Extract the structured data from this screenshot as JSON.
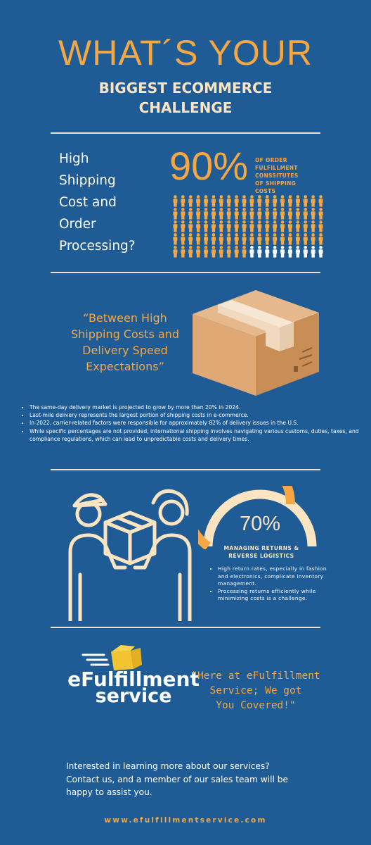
{
  "header": {
    "title_line1": "WHAT´S YOUR",
    "title_line2": "BIGGEST ECOMMERCE",
    "title_line3": "CHALLENGE"
  },
  "shipping": {
    "question_lines": [
      "High",
      "Shipping",
      "Cost and",
      "Order",
      "Processing?"
    ],
    "percent": "90%",
    "percent_label_lines": [
      "OF ORDER",
      "FULFILLMENT",
      "CONSSITUTES",
      "OF SHIPPING",
      "COSTS"
    ],
    "people_total": 100,
    "people_highlighted": 90,
    "colors": {
      "highlight": "#f4a742",
      "rest": "#ffffff"
    }
  },
  "delivery": {
    "quote_lines": [
      "“Between High",
      "Shipping Costs and",
      "Delivery Speed",
      "Expectations”"
    ],
    "box_icon": "cardboard-box-icon",
    "bullets": [
      "The same-day delivery market is projected to grow by more than 20% in 2024.",
      "Last-mile delivery represents the largest portion of shipping costs in e-commerce.",
      "In 2022, carrier-related factors were responsible for approximately 82% of delivery issues in the U.S.",
      "While specific percentages are not provided, international shipping involves navigating various customs, duties, taxes, and compliance regulations, which can lead to unpredictable costs and delivery times."
    ]
  },
  "returns": {
    "illustration_icon": "package-handover-icon",
    "percent": "70%",
    "gauge_fraction": 0.7,
    "heading_lines": [
      "MANAGING RETURNS &",
      "REVERSE LOGISTICS"
    ],
    "bullets": [
      "High return rates, especially in fashion and electronics, complicate inventory management.",
      "Processing returns efficiently while minimizing costs is a challenge."
    ]
  },
  "brand": {
    "logo_icon": "flying-box-icon",
    "logo_line1": "eFulfillment",
    "logo_line2": "service",
    "quote_lines": [
      "\"Here at eFulfillment",
      "Service; We got",
      "You Covered!\""
    ],
    "contact_lines": [
      "Interested in learning more about our services?",
      "Contact us, and a member of our sales team will be",
      "happy to assist you."
    ],
    "url": "www.efulfillmentservice.com"
  }
}
